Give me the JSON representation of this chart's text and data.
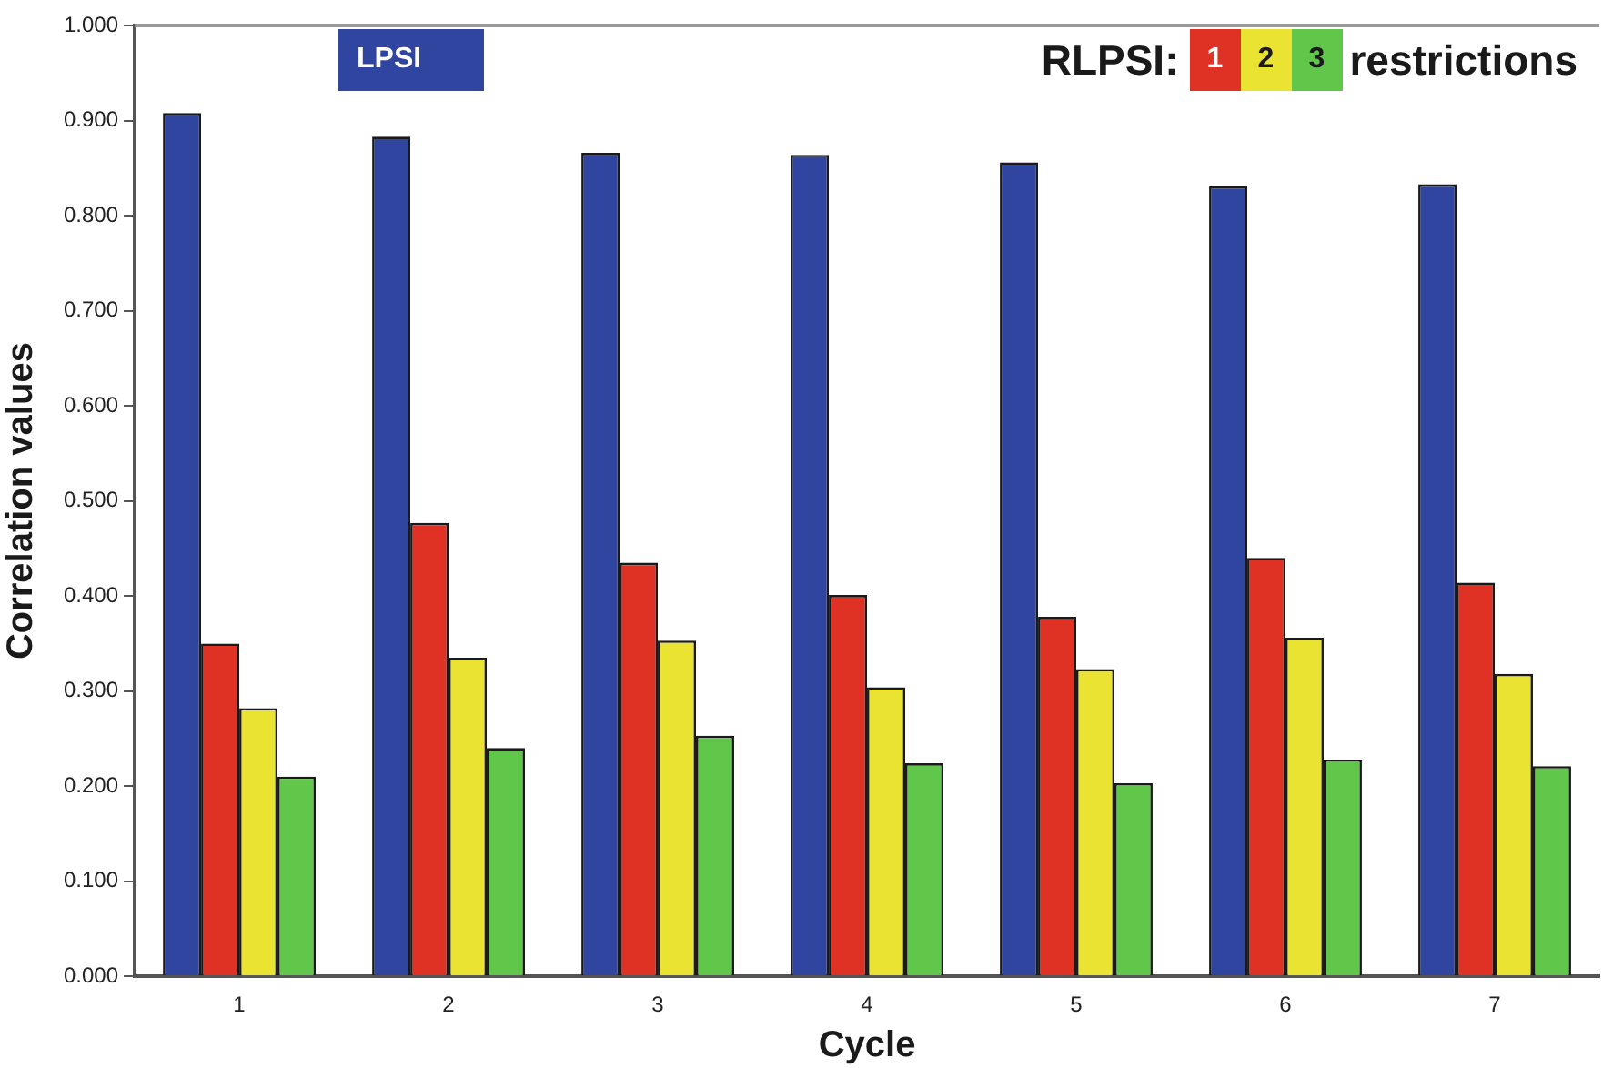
{
  "chart_data": {
    "type": "bar",
    "xlabel": "Cycle",
    "ylabel": "Correlation values",
    "legend_title": "RLPSI:",
    "annotations": [
      "restrictions"
    ],
    "categories": [
      "1",
      "2",
      "3",
      "4",
      "5",
      "6",
      "7"
    ],
    "series": [
      {
        "name": "LPSI",
        "color": "#2f45a0",
        "values": [
          0.908,
          0.883,
          0.866,
          0.864,
          0.856,
          0.831,
          0.833
        ]
      },
      {
        "name": "1",
        "color": "#e03224",
        "values": [
          0.35,
          0.477,
          0.435,
          0.401,
          0.378,
          0.44,
          0.414
        ]
      },
      {
        "name": "2",
        "color": "#ebe331",
        "values": [
          0.282,
          0.335,
          0.353,
          0.304,
          0.323,
          0.356,
          0.318
        ]
      },
      {
        "name": "3",
        "color": "#60c74a",
        "values": [
          0.21,
          0.24,
          0.253,
          0.224,
          0.203,
          0.228,
          0.221
        ]
      }
    ],
    "ylim": [
      0,
      1
    ],
    "yticks": [
      {
        "value": 0,
        "label": "0.000"
      },
      {
        "value": 0.1,
        "label": "0.100"
      },
      {
        "value": 0.2,
        "label": "0.200"
      },
      {
        "value": 0.3,
        "label": "0.300"
      },
      {
        "value": 0.4,
        "label": "0.400"
      },
      {
        "value": 0.5,
        "label": "0.500"
      },
      {
        "value": 0.6,
        "label": "0.600"
      },
      {
        "value": 0.7,
        "label": "0.700"
      },
      {
        "value": 0.8,
        "label": "0.800"
      },
      {
        "value": 0.9,
        "label": "0.900"
      },
      {
        "value": 1,
        "label": "1.000"
      }
    ],
    "grid": false,
    "legend": "top"
  }
}
